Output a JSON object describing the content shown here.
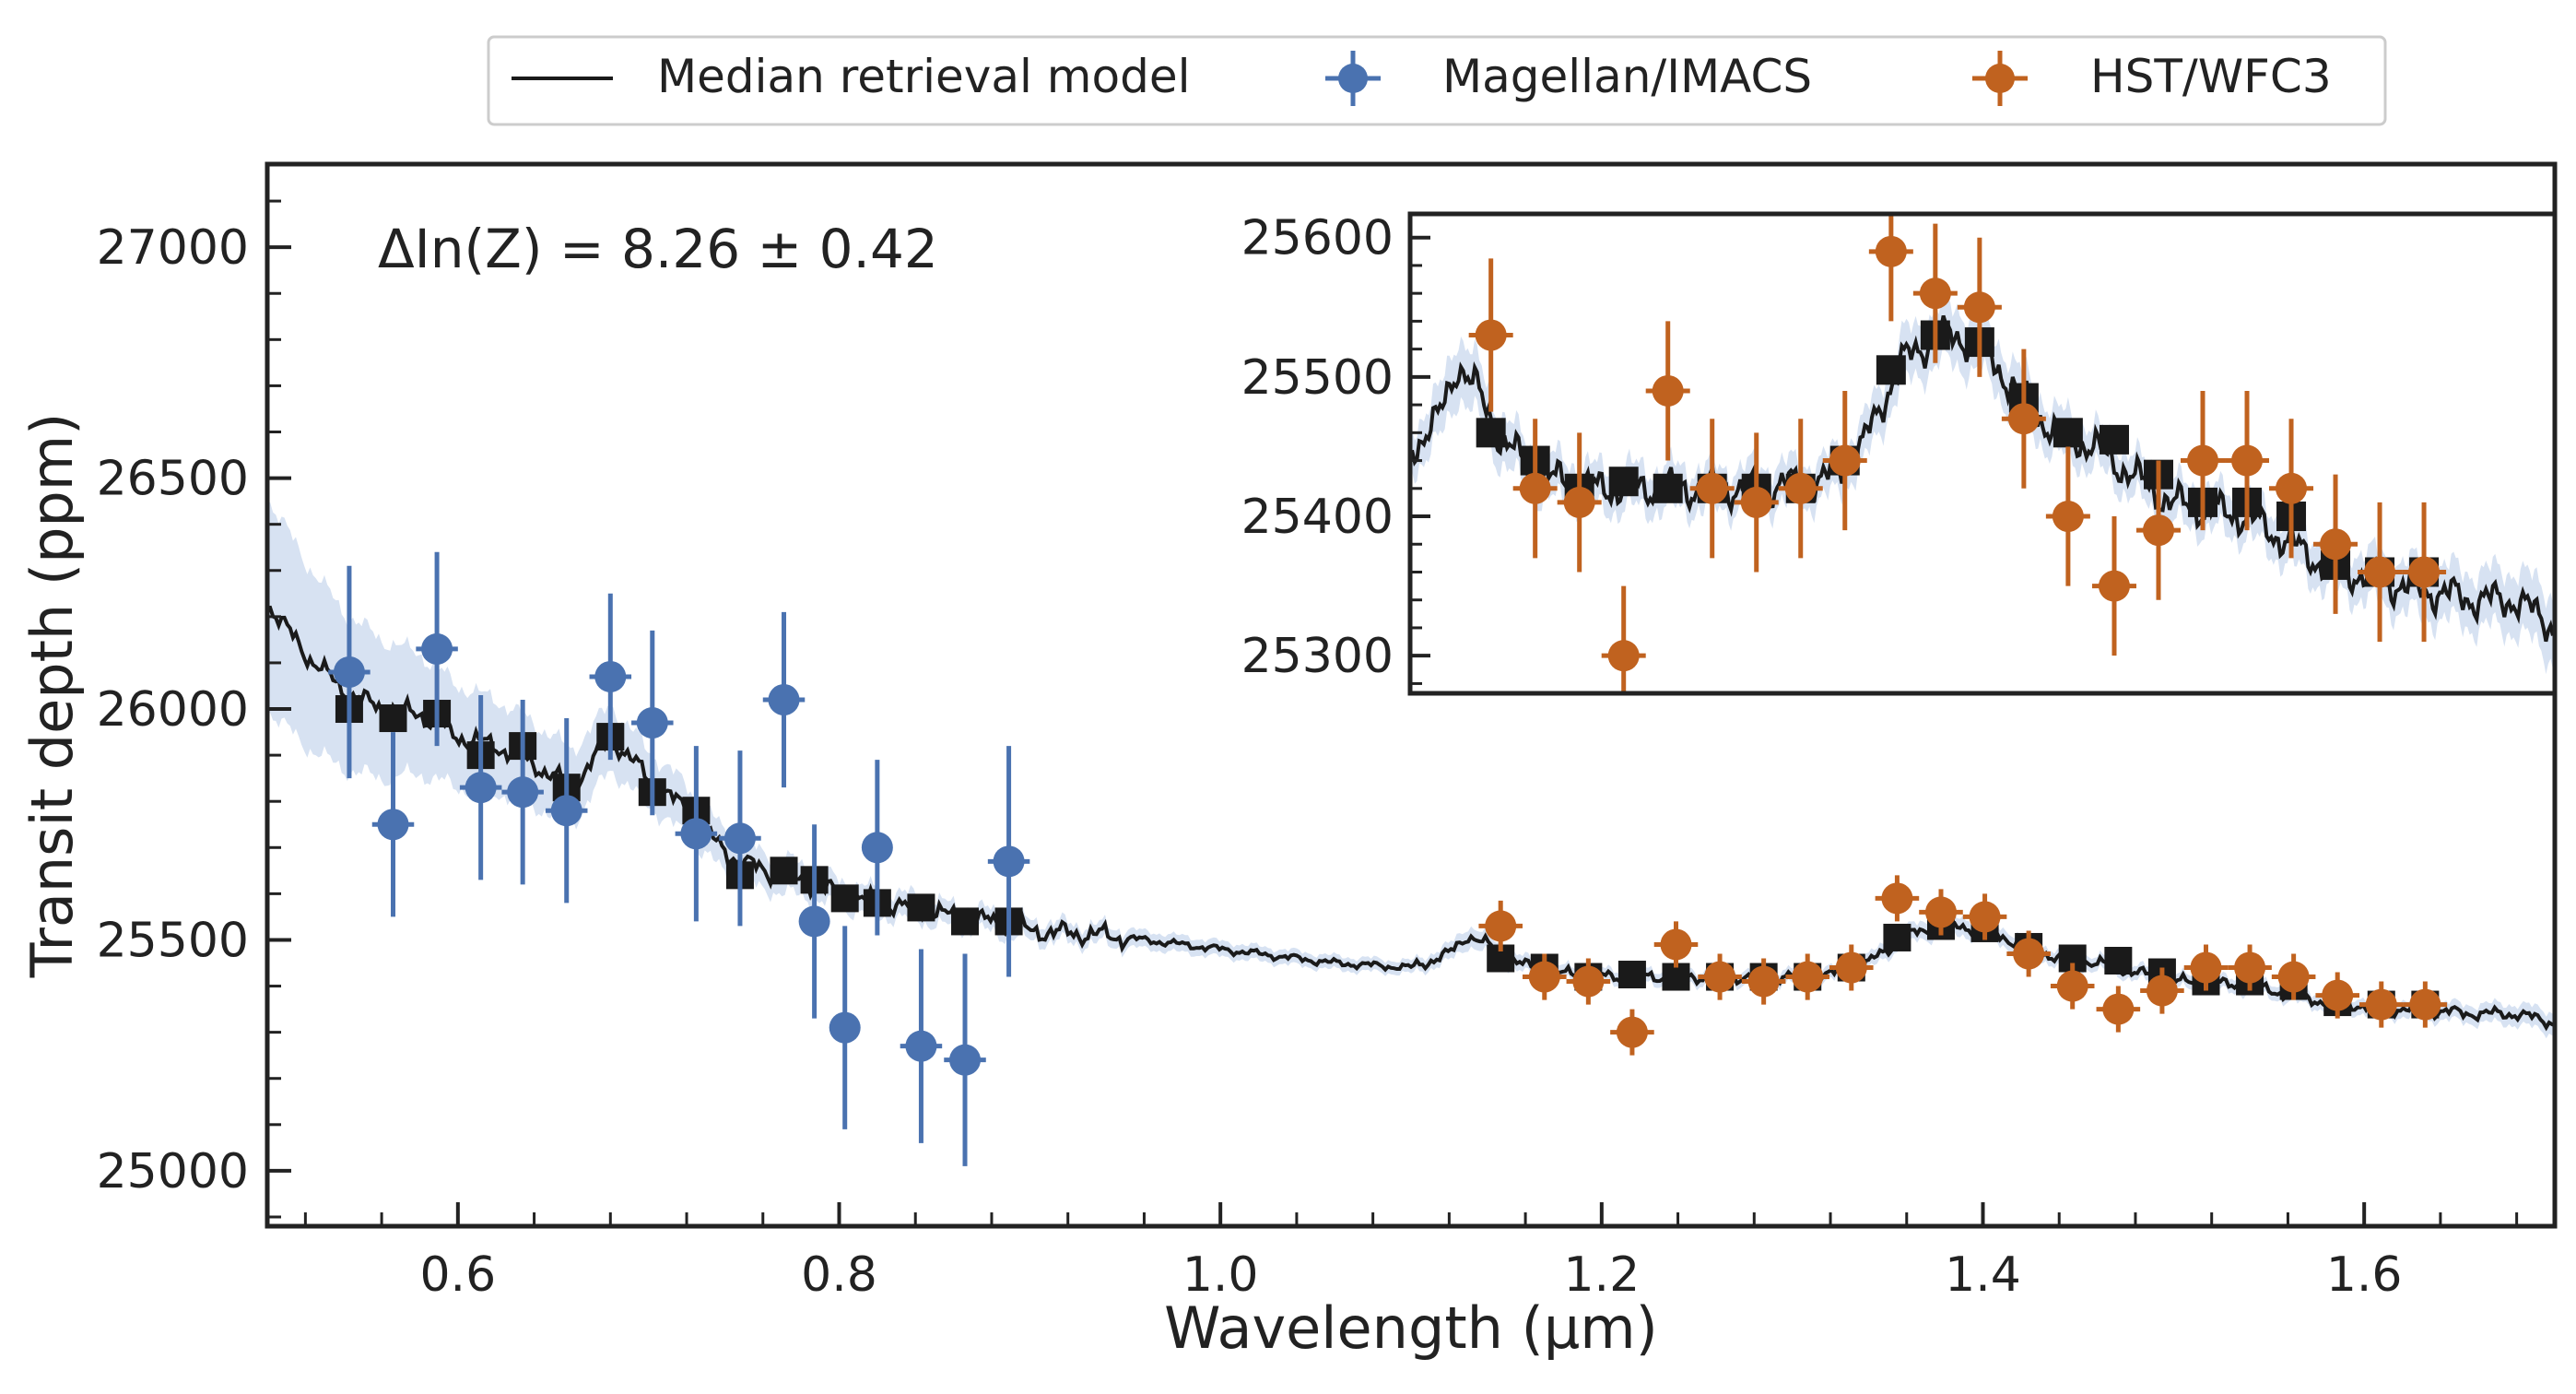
{
  "legend": {
    "items": [
      {
        "label": "Median retrieval model",
        "kind": "line",
        "color": "#1a1a1a"
      },
      {
        "label": "Magellan/IMACS",
        "kind": "errorbar",
        "color": "#4a72b0"
      },
      {
        "label": "HST/WFC3",
        "kind": "errorbar",
        "color": "#c0621f"
      }
    ]
  },
  "annotation": "ΔIn(Z) = 8.26 ± 0.42",
  "colors": {
    "magellan": "#4a72b0",
    "hst": "#c0621f",
    "model": "#1a1a1a",
    "band": "#c9d8ee",
    "binned": "#1a1a1a",
    "axis": "#222222"
  },
  "chart_data": [
    {
      "id": "main",
      "type": "scatter",
      "title": "",
      "xlabel": "Wavelength (μm)",
      "ylabel": "Transit depth (ppm)",
      "xlim": [
        0.5,
        1.7
      ],
      "ylim": [
        24880,
        27180
      ],
      "xticks": [
        0.6,
        0.8,
        1.0,
        1.2,
        1.4,
        1.6
      ],
      "xtick_labels": [
        "0.6",
        "0.8",
        "1.0",
        "1.2",
        "1.4",
        "1.6"
      ],
      "yticks": [
        25000,
        25500,
        26000,
        26500,
        27000
      ],
      "ytick_labels": [
        "25000",
        "25500",
        "26000",
        "26500",
        "27000"
      ],
      "series": [
        {
          "name": "Magellan/IMACS",
          "color": "#4a72b0",
          "x": [
            0.543,
            0.566,
            0.589,
            0.612,
            0.634,
            0.657,
            0.68,
            0.702,
            0.725,
            0.748,
            0.771,
            0.787,
            0.803,
            0.82,
            0.843,
            0.866,
            0.889
          ],
          "y": [
            26080,
            25750,
            26130,
            25830,
            25820,
            25780,
            26070,
            25970,
            25730,
            25720,
            26020,
            25540,
            25310,
            25700,
            25270,
            25240,
            25670
          ],
          "yerr": [
            230,
            200,
            210,
            200,
            200,
            200,
            180,
            200,
            190,
            190,
            190,
            210,
            220,
            190,
            210,
            230,
            250
          ],
          "xerr": [
            0.011,
            0.011,
            0.011,
            0.011,
            0.011,
            0.011,
            0.011,
            0.011,
            0.011,
            0.011,
            0.011,
            0.008,
            0.008,
            0.008,
            0.011,
            0.011,
            0.011
          ]
        },
        {
          "name": "HST/WFC3",
          "color": "#c0621f",
          "x": [
            1.147,
            1.17,
            1.193,
            1.216,
            1.239,
            1.262,
            1.285,
            1.308,
            1.331,
            1.355,
            1.378,
            1.401,
            1.424,
            1.447,
            1.471,
            1.494,
            1.517,
            1.54,
            1.563,
            1.586,
            1.609,
            1.632
          ],
          "y": [
            25530,
            25420,
            25410,
            25300,
            25490,
            25420,
            25410,
            25420,
            25440,
            25590,
            25560,
            25550,
            25470,
            25400,
            25350,
            25390,
            25440,
            25440,
            25420,
            25380,
            25360,
            25360
          ],
          "yerr": [
            55,
            50,
            50,
            50,
            50,
            50,
            50,
            50,
            50,
            50,
            50,
            50,
            50,
            50,
            50,
            50,
            50,
            50,
            50,
            50,
            50,
            50
          ],
          "xerr": [
            0.0115,
            0.0115,
            0.0115,
            0.0115,
            0.0115,
            0.0115,
            0.0115,
            0.0115,
            0.0115,
            0.0115,
            0.0115,
            0.0115,
            0.0115,
            0.0115,
            0.0115,
            0.0115,
            0.0115,
            0.0115,
            0.0115,
            0.0115,
            0.0115,
            0.0115
          ]
        },
        {
          "name": "Binned model",
          "color": "#1a1a1a",
          "x": [
            0.543,
            0.566,
            0.589,
            0.612,
            0.634,
            0.657,
            0.68,
            0.702,
            0.725,
            0.748,
            0.771,
            0.787,
            0.803,
            0.82,
            0.843,
            0.866,
            0.889,
            1.147,
            1.17,
            1.193,
            1.216,
            1.239,
            1.262,
            1.285,
            1.308,
            1.331,
            1.355,
            1.378,
            1.401,
            1.424,
            1.447,
            1.471,
            1.494,
            1.517,
            1.54,
            1.563,
            1.586,
            1.609,
            1.632
          ],
          "y": [
            26000,
            25980,
            25990,
            25900,
            25920,
            25830,
            25940,
            25820,
            25780,
            25640,
            25650,
            25630,
            25590,
            25580,
            25570,
            25540,
            25540,
            25460,
            25440,
            25420,
            25425,
            25420,
            25420,
            25420,
            25420,
            25440,
            25505,
            25530,
            25525,
            25485,
            25460,
            25455,
            25430,
            25410,
            25410,
            25400,
            25365,
            25360,
            25360
          ]
        },
        {
          "name": "Median retrieval model",
          "type": "line",
          "color": "#1a1a1a",
          "x": [
            0.5,
            0.52,
            0.54,
            0.56,
            0.58,
            0.6,
            0.62,
            0.64,
            0.66,
            0.68,
            0.7,
            0.72,
            0.74,
            0.76,
            0.78,
            0.8,
            0.82,
            0.84,
            0.86,
            0.88,
            0.9,
            0.94,
            0.98,
            1.02,
            1.06,
            1.1,
            1.12,
            1.13,
            1.14,
            1.15,
            1.17,
            1.2,
            1.24,
            1.28,
            1.32,
            1.34,
            1.36,
            1.38,
            1.4,
            1.42,
            1.44,
            1.46,
            1.48,
            1.5,
            1.54,
            1.58,
            1.62,
            1.66,
            1.68,
            1.7
          ],
          "y": [
            26230,
            26120,
            26040,
            26000,
            25990,
            25940,
            25920,
            25880,
            25830,
            25940,
            25850,
            25780,
            25690,
            25650,
            25630,
            25600,
            25580,
            25570,
            25550,
            25540,
            25520,
            25510,
            25490,
            25470,
            25450,
            25440,
            25470,
            25510,
            25490,
            25460,
            25430,
            25420,
            25420,
            25420,
            25425,
            25450,
            25510,
            25530,
            25525,
            25490,
            25460,
            25450,
            25430,
            25410,
            25400,
            25365,
            25350,
            25340,
            25340,
            25320
          ],
          "band_halfwidth": [
            230,
            200,
            170,
            150,
            130,
            110,
            100,
            90,
            80,
            70,
            60,
            55,
            45,
            40,
            35,
            30,
            28,
            26,
            25,
            24,
            22,
            20,
            18,
            16,
            15,
            14,
            18,
            22,
            20,
            18,
            16,
            15,
            15,
            15,
            15,
            16,
            18,
            20,
            20,
            18,
            16,
            15,
            15,
            15,
            15,
            16,
            18,
            20,
            22,
            24
          ]
        }
      ]
    },
    {
      "id": "inset",
      "type": "scatter",
      "title": "",
      "xlim": [
        1.105,
        1.7
      ],
      "ylim": [
        25273,
        25617
      ],
      "yticks": [
        25300,
        25400,
        25500,
        25600
      ],
      "ytick_labels": [
        "25300",
        "25400",
        "25500",
        "25600"
      ],
      "xticks": [],
      "xtick_labels": [],
      "series_ref": [
        "HST/WFC3",
        "Binned model (HST range)",
        "Median retrieval model"
      ],
      "x_min_for_model": 1.105
    }
  ]
}
